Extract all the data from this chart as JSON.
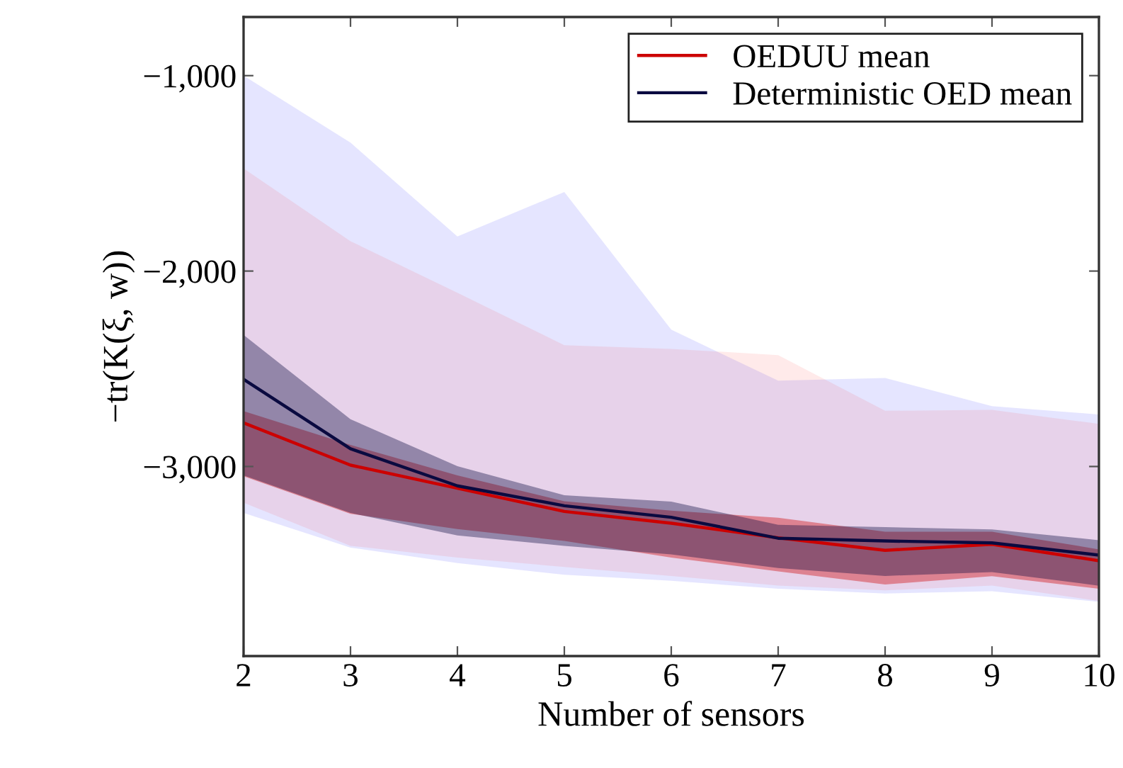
{
  "chart_data": {
    "type": "line",
    "xlabel": "Number of sensors",
    "ylabel": "−tr(K(ξ, w))",
    "x": [
      2,
      3,
      4,
      5,
      6,
      7,
      8,
      9,
      10
    ],
    "series": [
      {
        "type": "area",
        "color": "#0000ff",
        "values": [
          null,
          null,
          null,
          null,
          null,
          null,
          null,
          null,
          null
        ],
        "lower": [
          -3238,
          -3415,
          -3494,
          -3554,
          -3585,
          -3626,
          -3650,
          -3638,
          -3693
        ],
        "upper": [
          -1000,
          -1343,
          -1823,
          -1595,
          -2300,
          -2561,
          -2547,
          -2691,
          -2734
        ]
      },
      {
        "type": "area",
        "color": "#ff3030",
        "values": [
          null,
          null,
          null,
          null,
          null,
          null,
          null,
          null,
          null
        ],
        "lower": [
          -3185,
          -3406,
          -3466,
          -3514,
          -3560,
          -3609,
          -3634,
          -3609,
          -3688
        ],
        "upper": [
          -1475,
          -1847,
          -2111,
          -2379,
          -2398,
          -2430,
          -2715,
          -2710,
          -2782
        ]
      },
      {
        "name": "OEDUU mean",
        "color": "#cc0000",
        "values": [
          -2777,
          -2993,
          -3111,
          -3230,
          -3290,
          -3365,
          -3429,
          -3398,
          -3482
        ],
        "lower": [
          -3050,
          -3242,
          -3320,
          -3381,
          -3466,
          -3537,
          -3604,
          -3561,
          -3626
        ],
        "upper": [
          -2717,
          -2890,
          -3046,
          -3178,
          -3226,
          -3262,
          -3334,
          -3334,
          -3424
        ]
      },
      {
        "name": "Deterministic OED mean",
        "color": "#0a0a40",
        "values": [
          -2554,
          -2909,
          -3099,
          -3201,
          -3260,
          -3367,
          -3381,
          -3391,
          -3453
        ],
        "lower": [
          -3046,
          -3238,
          -3353,
          -3406,
          -3450,
          -3520,
          -3560,
          -3540,
          -3610
        ],
        "upper": [
          -2327,
          -2758,
          -2998,
          -3147,
          -3180,
          -3298,
          -3310,
          -3322,
          -3377
        ]
      }
    ],
    "xlim": [
      2,
      10
    ],
    "ylim": [
      -3970,
      -700
    ],
    "xticks": [
      2,
      3,
      4,
      5,
      6,
      7,
      8,
      9,
      10
    ],
    "yticks": [
      {
        "value": -1000,
        "label": "−1,000"
      },
      {
        "value": -2000,
        "label": "−2,000"
      },
      {
        "value": -3000,
        "label": "−3,000"
      }
    ],
    "legend": "top right",
    "grid": false,
    "marker": "none",
    "line_style": "solid"
  }
}
